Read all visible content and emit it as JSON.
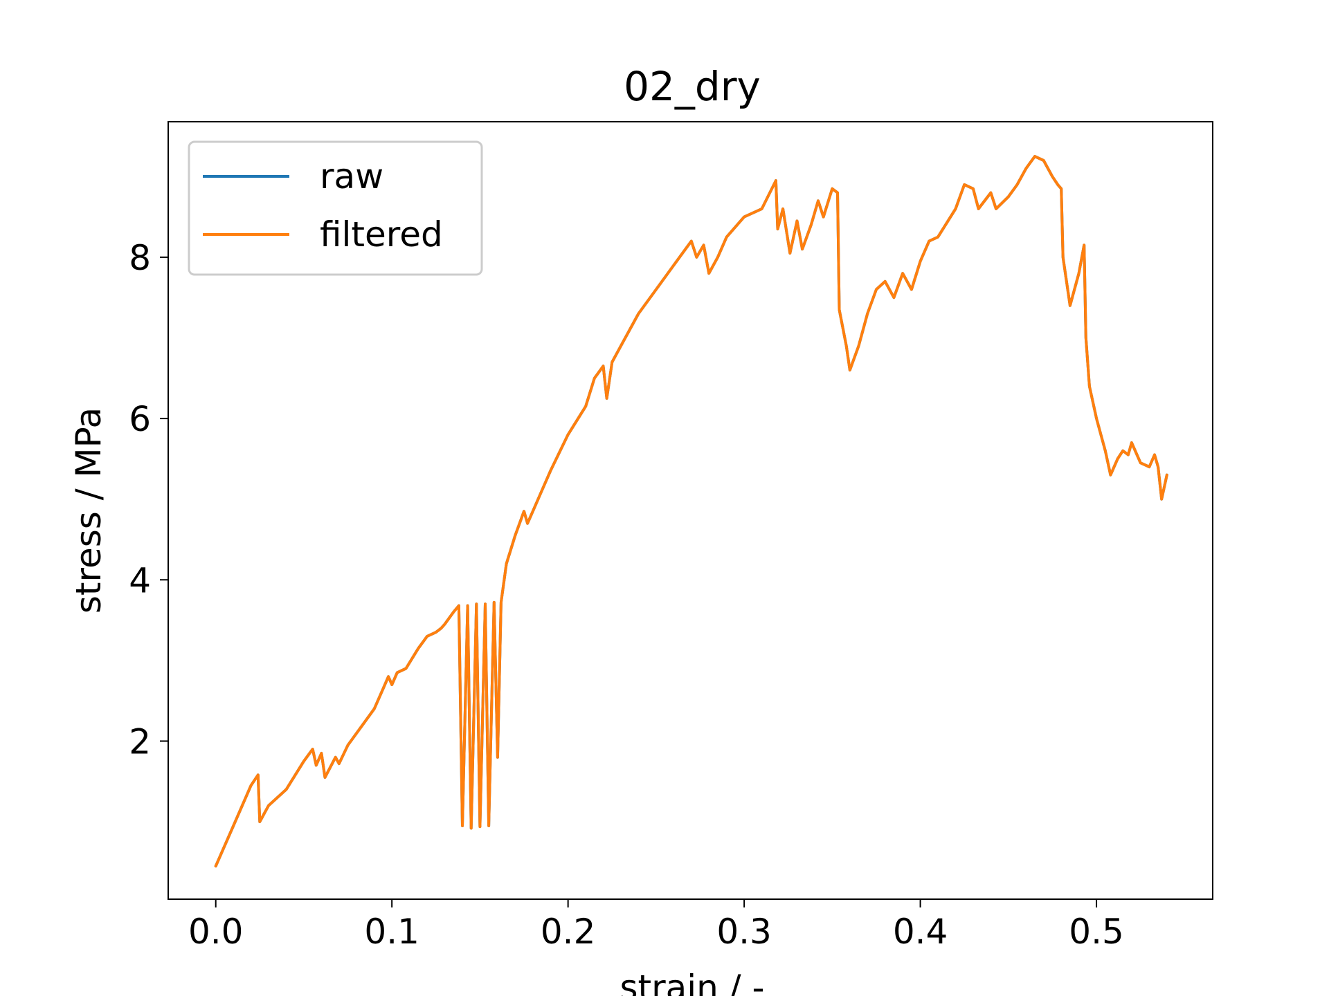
{
  "chart_data": {
    "type": "line",
    "title": "02_dry",
    "xlabel": "strain / -",
    "ylabel": "stress / MPa",
    "xlim": [
      -0.027,
      0.566
    ],
    "ylim": [
      0.04,
      9.68
    ],
    "xticks": [
      0.0,
      0.1,
      0.2,
      0.3,
      0.4,
      0.5
    ],
    "xtick_labels": [
      "0.0",
      "0.1",
      "0.2",
      "0.3",
      "0.4",
      "0.5"
    ],
    "yticks": [
      2,
      4,
      6,
      8
    ],
    "ytick_labels": [
      "2",
      "4",
      "6",
      "8"
    ],
    "grid": false,
    "legend_position": "top-left",
    "series": [
      {
        "name": "raw",
        "color": "#1f77b4",
        "points": [
          [
            0.0,
            0.45
          ],
          [
            0.01,
            0.95
          ],
          [
            0.02,
            1.45
          ],
          [
            0.024,
            1.58
          ],
          [
            0.025,
            1.0
          ],
          [
            0.03,
            1.2
          ],
          [
            0.04,
            1.4
          ],
          [
            0.05,
            1.75
          ],
          [
            0.055,
            1.9
          ],
          [
            0.057,
            1.7
          ],
          [
            0.06,
            1.85
          ],
          [
            0.062,
            1.55
          ],
          [
            0.068,
            1.8
          ],
          [
            0.07,
            1.72
          ],
          [
            0.075,
            1.95
          ],
          [
            0.085,
            2.25
          ],
          [
            0.09,
            2.4
          ],
          [
            0.095,
            2.65
          ],
          [
            0.098,
            2.8
          ],
          [
            0.1,
            2.7
          ],
          [
            0.103,
            2.85
          ],
          [
            0.108,
            2.9
          ],
          [
            0.115,
            3.15
          ],
          [
            0.12,
            3.3
          ],
          [
            0.125,
            3.35
          ],
          [
            0.128,
            3.4
          ],
          [
            0.13,
            3.45
          ],
          [
            0.135,
            3.6
          ],
          [
            0.138,
            3.68
          ],
          [
            0.14,
            0.95
          ],
          [
            0.143,
            3.68
          ],
          [
            0.145,
            0.92
          ],
          [
            0.148,
            3.7
          ],
          [
            0.15,
            0.94
          ],
          [
            0.153,
            3.7
          ],
          [
            0.155,
            0.95
          ],
          [
            0.158,
            3.72
          ],
          [
            0.16,
            1.8
          ],
          [
            0.162,
            3.72
          ],
          [
            0.165,
            4.2
          ],
          [
            0.17,
            4.55
          ],
          [
            0.175,
            4.85
          ],
          [
            0.177,
            4.7
          ],
          [
            0.18,
            4.85
          ],
          [
            0.185,
            5.1
          ],
          [
            0.19,
            5.35
          ],
          [
            0.2,
            5.8
          ],
          [
            0.21,
            6.15
          ],
          [
            0.215,
            6.5
          ],
          [
            0.22,
            6.65
          ],
          [
            0.222,
            6.25
          ],
          [
            0.225,
            6.7
          ],
          [
            0.23,
            6.9
          ],
          [
            0.24,
            7.3
          ],
          [
            0.25,
            7.6
          ],
          [
            0.26,
            7.9
          ],
          [
            0.265,
            8.05
          ],
          [
            0.27,
            8.2
          ],
          [
            0.273,
            8.0
          ],
          [
            0.277,
            8.15
          ],
          [
            0.28,
            7.8
          ],
          [
            0.285,
            8.0
          ],
          [
            0.29,
            8.25
          ],
          [
            0.3,
            8.5
          ],
          [
            0.31,
            8.6
          ],
          [
            0.318,
            8.95
          ],
          [
            0.319,
            8.35
          ],
          [
            0.322,
            8.6
          ],
          [
            0.326,
            8.05
          ],
          [
            0.33,
            8.45
          ],
          [
            0.333,
            8.1
          ],
          [
            0.338,
            8.4
          ],
          [
            0.342,
            8.7
          ],
          [
            0.345,
            8.5
          ],
          [
            0.35,
            8.85
          ],
          [
            0.353,
            8.8
          ],
          [
            0.354,
            7.35
          ],
          [
            0.358,
            6.9
          ],
          [
            0.36,
            6.6
          ],
          [
            0.365,
            6.9
          ],
          [
            0.37,
            7.3
          ],
          [
            0.375,
            7.6
          ],
          [
            0.38,
            7.7
          ],
          [
            0.385,
            7.5
          ],
          [
            0.39,
            7.8
          ],
          [
            0.395,
            7.6
          ],
          [
            0.4,
            7.95
          ],
          [
            0.405,
            8.2
          ],
          [
            0.41,
            8.25
          ],
          [
            0.42,
            8.6
          ],
          [
            0.425,
            8.9
          ],
          [
            0.43,
            8.85
          ],
          [
            0.433,
            8.6
          ],
          [
            0.44,
            8.8
          ],
          [
            0.443,
            8.6
          ],
          [
            0.45,
            8.75
          ],
          [
            0.455,
            8.9
          ],
          [
            0.46,
            9.1
          ],
          [
            0.465,
            9.25
          ],
          [
            0.47,
            9.2
          ],
          [
            0.475,
            9.0
          ],
          [
            0.478,
            8.9
          ],
          [
            0.48,
            8.85
          ],
          [
            0.481,
            8.0
          ],
          [
            0.485,
            7.4
          ],
          [
            0.49,
            7.8
          ],
          [
            0.493,
            8.15
          ],
          [
            0.494,
            7.0
          ],
          [
            0.496,
            6.4
          ],
          [
            0.5,
            6.0
          ],
          [
            0.505,
            5.6
          ],
          [
            0.508,
            5.3
          ],
          [
            0.512,
            5.5
          ],
          [
            0.515,
            5.6
          ],
          [
            0.518,
            5.55
          ],
          [
            0.52,
            5.7
          ],
          [
            0.525,
            5.45
          ],
          [
            0.53,
            5.4
          ],
          [
            0.533,
            5.55
          ],
          [
            0.535,
            5.4
          ],
          [
            0.537,
            5.0
          ],
          [
            0.54,
            5.3
          ]
        ]
      },
      {
        "name": "filtered",
        "color": "#ff7f0e",
        "points": [
          [
            0.0,
            0.45
          ],
          [
            0.01,
            0.95
          ],
          [
            0.02,
            1.45
          ],
          [
            0.024,
            1.58
          ],
          [
            0.025,
            1.0
          ],
          [
            0.03,
            1.2
          ],
          [
            0.04,
            1.4
          ],
          [
            0.05,
            1.75
          ],
          [
            0.055,
            1.9
          ],
          [
            0.057,
            1.7
          ],
          [
            0.06,
            1.85
          ],
          [
            0.062,
            1.55
          ],
          [
            0.068,
            1.8
          ],
          [
            0.07,
            1.72
          ],
          [
            0.075,
            1.95
          ],
          [
            0.085,
            2.25
          ],
          [
            0.09,
            2.4
          ],
          [
            0.095,
            2.65
          ],
          [
            0.098,
            2.8
          ],
          [
            0.1,
            2.7
          ],
          [
            0.103,
            2.85
          ],
          [
            0.108,
            2.9
          ],
          [
            0.115,
            3.15
          ],
          [
            0.12,
            3.3
          ],
          [
            0.125,
            3.35
          ],
          [
            0.128,
            3.4
          ],
          [
            0.13,
            3.45
          ],
          [
            0.135,
            3.6
          ],
          [
            0.138,
            3.68
          ],
          [
            0.14,
            0.95
          ],
          [
            0.143,
            3.68
          ],
          [
            0.145,
            0.92
          ],
          [
            0.148,
            3.7
          ],
          [
            0.15,
            0.94
          ],
          [
            0.153,
            3.7
          ],
          [
            0.155,
            0.95
          ],
          [
            0.158,
            3.72
          ],
          [
            0.16,
            1.8
          ],
          [
            0.162,
            3.72
          ],
          [
            0.165,
            4.2
          ],
          [
            0.17,
            4.55
          ],
          [
            0.175,
            4.85
          ],
          [
            0.177,
            4.7
          ],
          [
            0.18,
            4.85
          ],
          [
            0.185,
            5.1
          ],
          [
            0.19,
            5.35
          ],
          [
            0.2,
            5.8
          ],
          [
            0.21,
            6.15
          ],
          [
            0.215,
            6.5
          ],
          [
            0.22,
            6.65
          ],
          [
            0.222,
            6.25
          ],
          [
            0.225,
            6.7
          ],
          [
            0.23,
            6.9
          ],
          [
            0.24,
            7.3
          ],
          [
            0.25,
            7.6
          ],
          [
            0.26,
            7.9
          ],
          [
            0.265,
            8.05
          ],
          [
            0.27,
            8.2
          ],
          [
            0.273,
            8.0
          ],
          [
            0.277,
            8.15
          ],
          [
            0.28,
            7.8
          ],
          [
            0.285,
            8.0
          ],
          [
            0.29,
            8.25
          ],
          [
            0.3,
            8.5
          ],
          [
            0.31,
            8.6
          ],
          [
            0.318,
            8.95
          ],
          [
            0.319,
            8.35
          ],
          [
            0.322,
            8.6
          ],
          [
            0.326,
            8.05
          ],
          [
            0.33,
            8.45
          ],
          [
            0.333,
            8.1
          ],
          [
            0.338,
            8.4
          ],
          [
            0.342,
            8.7
          ],
          [
            0.345,
            8.5
          ],
          [
            0.35,
            8.85
          ],
          [
            0.353,
            8.8
          ],
          [
            0.354,
            7.35
          ],
          [
            0.358,
            6.9
          ],
          [
            0.36,
            6.6
          ],
          [
            0.365,
            6.9
          ],
          [
            0.37,
            7.3
          ],
          [
            0.375,
            7.6
          ],
          [
            0.38,
            7.7
          ],
          [
            0.385,
            7.5
          ],
          [
            0.39,
            7.8
          ],
          [
            0.395,
            7.6
          ],
          [
            0.4,
            7.95
          ],
          [
            0.405,
            8.2
          ],
          [
            0.41,
            8.25
          ],
          [
            0.42,
            8.6
          ],
          [
            0.425,
            8.9
          ],
          [
            0.43,
            8.85
          ],
          [
            0.433,
            8.6
          ],
          [
            0.44,
            8.8
          ],
          [
            0.443,
            8.6
          ],
          [
            0.45,
            8.75
          ],
          [
            0.455,
            8.9
          ],
          [
            0.46,
            9.1
          ],
          [
            0.465,
            9.25
          ],
          [
            0.47,
            9.2
          ],
          [
            0.475,
            9.0
          ],
          [
            0.478,
            8.9
          ],
          [
            0.48,
            8.85
          ],
          [
            0.481,
            8.0
          ],
          [
            0.485,
            7.4
          ],
          [
            0.49,
            7.8
          ],
          [
            0.493,
            8.15
          ],
          [
            0.494,
            7.0
          ],
          [
            0.496,
            6.4
          ],
          [
            0.5,
            6.0
          ],
          [
            0.505,
            5.6
          ],
          [
            0.508,
            5.3
          ],
          [
            0.512,
            5.5
          ],
          [
            0.515,
            5.6
          ],
          [
            0.518,
            5.55
          ],
          [
            0.52,
            5.7
          ],
          [
            0.525,
            5.45
          ],
          [
            0.53,
            5.4
          ],
          [
            0.533,
            5.55
          ],
          [
            0.535,
            5.4
          ],
          [
            0.537,
            5.0
          ],
          [
            0.54,
            5.3
          ]
        ]
      }
    ]
  }
}
